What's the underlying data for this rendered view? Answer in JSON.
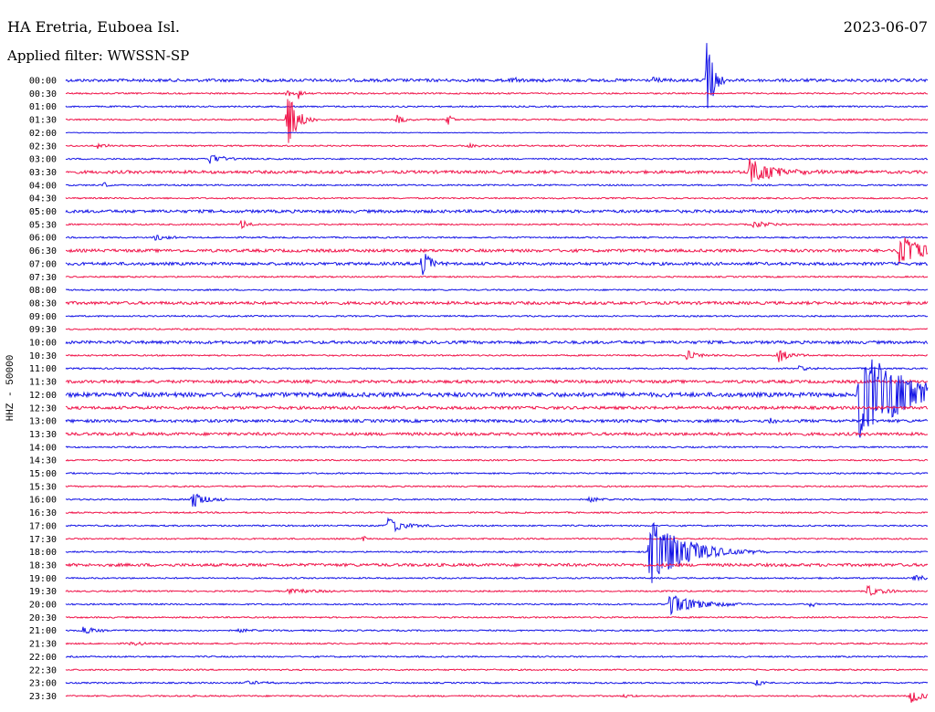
{
  "header": {
    "station": "HA Eretria, Euboea Isl.",
    "date": "2023-06-07",
    "filter": "Applied filter: WWSSN-SP"
  },
  "chart_data": {
    "type": "line",
    "title": "HA Eretria, Euboea Isl.",
    "ylabel": "HHZ - 50000",
    "row_labels": [
      "00:00",
      "00:30",
      "01:00",
      "01:30",
      "02:00",
      "02:30",
      "03:00",
      "03:30",
      "04:00",
      "04:30",
      "05:00",
      "05:30",
      "06:00",
      "06:30",
      "07:00",
      "07:30",
      "08:00",
      "08:30",
      "09:00",
      "09:30",
      "10:00",
      "10:30",
      "11:00",
      "11:30",
      "12:00",
      "12:30",
      "13:00",
      "13:30",
      "14:00",
      "14:30",
      "15:00",
      "15:30",
      "16:00",
      "16:30",
      "17:00",
      "17:30",
      "18:00",
      "18:30",
      "19:00",
      "19:30",
      "20:00",
      "20:30",
      "21:00",
      "21:30",
      "22:00",
      "22:30",
      "23:00",
      "23:30"
    ],
    "row_minutes": 30,
    "colors": {
      "even": "#1414e6",
      "odd": "#f0144a"
    },
    "noise_levels": [
      2,
      1,
      1,
      1,
      0.5,
      1,
      1,
      2,
      1,
      1,
      2,
      1,
      1,
      2,
      2,
      1,
      1,
      2,
      1,
      1,
      2,
      1,
      1,
      2,
      3,
      2,
      2,
      2,
      1,
      1,
      1,
      1,
      1,
      1,
      1,
      1,
      1,
      2,
      1,
      1,
      1,
      1,
      1,
      1,
      1,
      1,
      1,
      1
    ],
    "events": [
      {
        "row": 0,
        "minute": 22.3,
        "amp": 50,
        "dur": 0.3
      },
      {
        "row": 0,
        "minute": 15.5,
        "amp": 3,
        "dur": 0.5
      },
      {
        "row": 0,
        "minute": 20.4,
        "amp": 3,
        "dur": 0.4
      },
      {
        "row": 1,
        "minute": 8.1,
        "amp": 7,
        "dur": 0.2
      },
      {
        "row": 1,
        "minute": 7.7,
        "amp": 5,
        "dur": 0.2
      },
      {
        "row": 3,
        "minute": 7.7,
        "amp": 38,
        "dur": 0.4
      },
      {
        "row": 3,
        "minute": 11.5,
        "amp": 6,
        "dur": 0.4
      },
      {
        "row": 3,
        "minute": 13.3,
        "amp": 7,
        "dur": 0.2
      },
      {
        "row": 5,
        "minute": 1.1,
        "amp": 3,
        "dur": 0.6
      },
      {
        "row": 5,
        "minute": 14.0,
        "amp": 3,
        "dur": 0.3
      },
      {
        "row": 6,
        "minute": 5.0,
        "amp": 7,
        "dur": 0.6
      },
      {
        "row": 7,
        "minute": 23.8,
        "amp": 14,
        "dur": 1.2
      },
      {
        "row": 8,
        "minute": 1.3,
        "amp": 4,
        "dur": 0.2
      },
      {
        "row": 11,
        "minute": 6.1,
        "amp": 5,
        "dur": 0.4
      },
      {
        "row": 11,
        "minute": 23.9,
        "amp": 4,
        "dur": 0.8
      },
      {
        "row": 12,
        "minute": 3.1,
        "amp": 4,
        "dur": 0.5
      },
      {
        "row": 13,
        "minute": 29.0,
        "amp": 16,
        "dur": 1.5
      },
      {
        "row": 14,
        "minute": 12.4,
        "amp": 22,
        "dur": 0.3
      },
      {
        "row": 21,
        "minute": 21.6,
        "amp": 6,
        "dur": 0.6
      },
      {
        "row": 21,
        "minute": 24.8,
        "amp": 8,
        "dur": 0.5
      },
      {
        "row": 22,
        "minute": 25.5,
        "amp": 3,
        "dur": 0.5
      },
      {
        "row": 24,
        "minute": 27.6,
        "amp": 50,
        "dur": 2.4
      },
      {
        "row": 26,
        "minute": 24.5,
        "amp": 4,
        "dur": 0.2
      },
      {
        "row": 32,
        "minute": 4.4,
        "amp": 11,
        "dur": 0.6
      },
      {
        "row": 32,
        "minute": 18.2,
        "amp": 4,
        "dur": 0.4
      },
      {
        "row": 34,
        "minute": 11.2,
        "amp": 9,
        "dur": 0.7
      },
      {
        "row": 35,
        "minute": 10.3,
        "amp": 4,
        "dur": 0.2
      },
      {
        "row": 36,
        "minute": 20.3,
        "amp": 40,
        "dur": 1.6
      },
      {
        "row": 38,
        "minute": 29.5,
        "amp": 3,
        "dur": 0.8
      },
      {
        "row": 39,
        "minute": 7.7,
        "amp": 3,
        "dur": 1.2
      },
      {
        "row": 39,
        "minute": 27.9,
        "amp": 6,
        "dur": 0.7
      },
      {
        "row": 40,
        "minute": 21.0,
        "amp": 12,
        "dur": 1.3
      },
      {
        "row": 40,
        "minute": 25.9,
        "amp": 3,
        "dur": 0.4
      },
      {
        "row": 42,
        "minute": 0.6,
        "amp": 4,
        "dur": 0.6
      },
      {
        "row": 42,
        "minute": 6.0,
        "amp": 3,
        "dur": 0.4
      },
      {
        "row": 43,
        "minute": 2.2,
        "amp": 2,
        "dur": 0.8
      },
      {
        "row": 46,
        "minute": 6.3,
        "amp": 3,
        "dur": 0.8
      },
      {
        "row": 46,
        "minute": 24.0,
        "amp": 5,
        "dur": 0.3
      },
      {
        "row": 47,
        "minute": 29.4,
        "amp": 10,
        "dur": 0.5
      },
      {
        "row": 47,
        "minute": 19.4,
        "amp": 3,
        "dur": 0.3
      }
    ]
  }
}
